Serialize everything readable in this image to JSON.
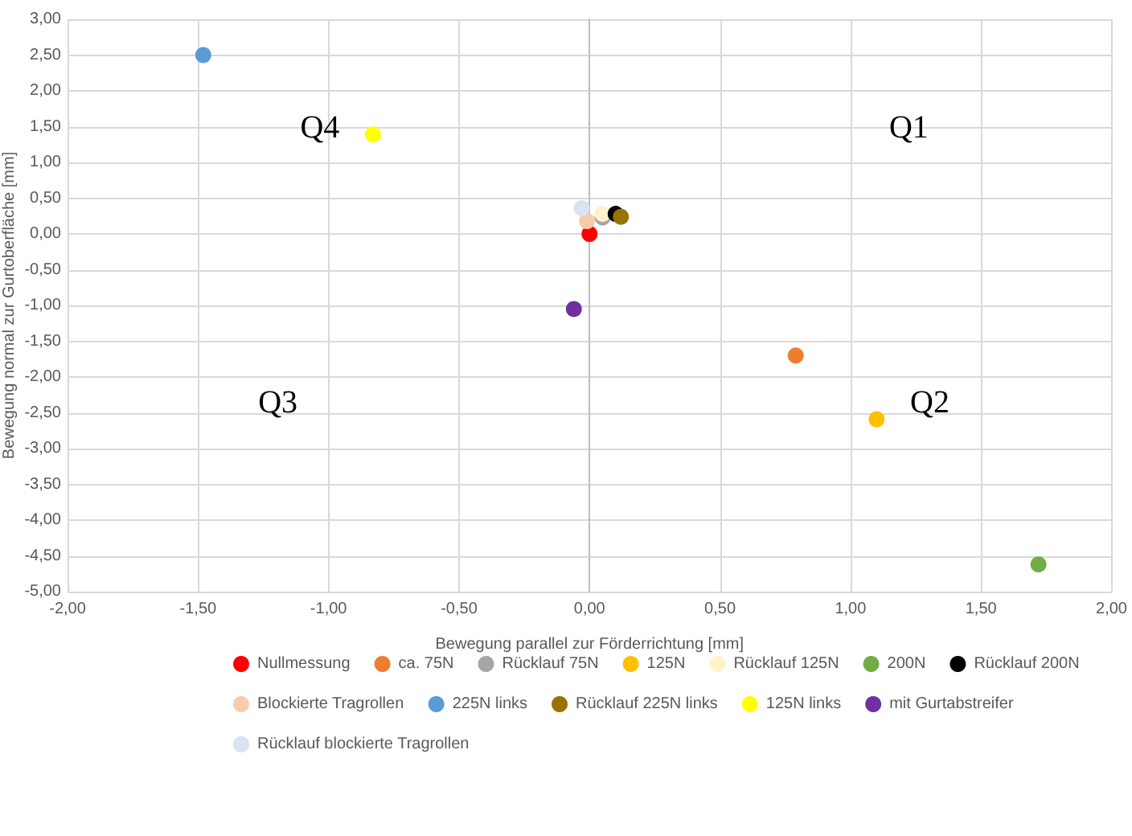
{
  "chart_data": {
    "type": "scatter",
    "xlabel": "Bewegung parallel zur Förderrichtung [mm]",
    "ylabel": "Bewegung normal zur Gurtoberfläche [mm]",
    "xlim": [
      -2,
      2
    ],
    "ylim": [
      -5,
      3
    ],
    "xticks": [
      {
        "value": -2,
        "label": "-2,00"
      },
      {
        "value": -1.5,
        "label": "-1,50"
      },
      {
        "value": -1,
        "label": "-1,00"
      },
      {
        "value": -0.5,
        "label": "-0,50"
      },
      {
        "value": 0,
        "label": "0,00"
      },
      {
        "value": 0.5,
        "label": "0,50"
      },
      {
        "value": 1,
        "label": "1,00"
      },
      {
        "value": 1.5,
        "label": "1,50"
      },
      {
        "value": 2,
        "label": "2,00"
      }
    ],
    "yticks": [
      {
        "value": -5,
        "label": "-5,00"
      },
      {
        "value": -4.5,
        "label": "-4,50"
      },
      {
        "value": -4,
        "label": "-4,00"
      },
      {
        "value": -3.5,
        "label": "-3,50"
      },
      {
        "value": -3,
        "label": "-3,00"
      },
      {
        "value": -2.5,
        "label": "-2,50"
      },
      {
        "value": -2,
        "label": "-2,00"
      },
      {
        "value": -1.5,
        "label": "-1,50"
      },
      {
        "value": -1,
        "label": "-1,00"
      },
      {
        "value": -0.5,
        "label": "-0,50"
      },
      {
        "value": 0,
        "label": "0,00"
      },
      {
        "value": 0.5,
        "label": "0,50"
      },
      {
        "value": 1,
        "label": "1,00"
      },
      {
        "value": 1.5,
        "label": "1,50"
      },
      {
        "value": 2,
        "label": "2,00"
      },
      {
        "value": 2.5,
        "label": "2,50"
      },
      {
        "value": 3,
        "label": "3,00"
      }
    ],
    "grid": true,
    "legend": "bottom",
    "marker": "circle",
    "annotations": [
      "Q4",
      "Q1",
      "Q3",
      "Q2"
    ],
    "series": [
      {
        "name": "Nullmessung",
        "color": "#ff0000",
        "x": [
          0
        ],
        "values": [
          0
        ]
      },
      {
        "name": "ca. 75N",
        "color": "#ed7d31",
        "x": [
          0.79
        ],
        "values": [
          -1.7
        ]
      },
      {
        "name": "Rücklauf 75N",
        "color": "#a5a5a5",
        "x": [
          0.05
        ],
        "values": [
          0.23
        ]
      },
      {
        "name": "125N",
        "color": "#ffc000",
        "x": [
          1.1
        ],
        "values": [
          -2.59
        ]
      },
      {
        "name": "Rücklauf 125N",
        "color": "#fff2cc",
        "x": [
          0.05
        ],
        "values": [
          0.28
        ]
      },
      {
        "name": "200N",
        "color": "#70ad47",
        "x": [
          1.72
        ],
        "values": [
          -4.62
        ]
      },
      {
        "name": "Rücklauf 200N",
        "color": "#000000",
        "x": [
          0.1
        ],
        "values": [
          0.28
        ]
      },
      {
        "name": "Blockierte Tragrollen",
        "color": "#f8cbad",
        "x": [
          -0.01
        ],
        "values": [
          0.18
        ]
      },
      {
        "name": "225N links",
        "color": "#5b9bd5",
        "x": [
          -1.48
        ],
        "values": [
          2.5
        ]
      },
      {
        "name": "Rücklauf 225N links",
        "color": "#997300",
        "x": [
          0.12
        ],
        "values": [
          0.24
        ]
      },
      {
        "name": "125N links",
        "color": "#ffff00",
        "x": [
          -0.83
        ],
        "values": [
          1.39
        ]
      },
      {
        "name": "mit Gurtabstreifer",
        "color": "#7030a0",
        "x": [
          -0.06
        ],
        "values": [
          -1.05
        ]
      },
      {
        "name": "Rücklauf blockierte Tragrollen",
        "color": "#dae3f3",
        "x": [
          -0.03
        ],
        "values": [
          0.36
        ]
      }
    ]
  }
}
